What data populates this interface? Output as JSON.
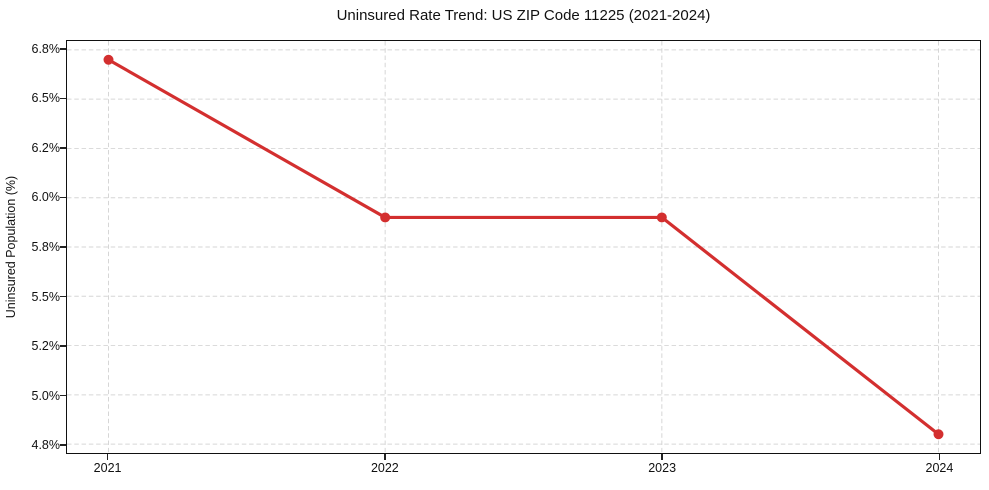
{
  "chart_data": {
    "type": "line",
    "title": "Uninsured Rate Trend: US ZIP Code 11225 (2021-2024)",
    "xlabel": "",
    "ylabel": "Uninsured Population (%)",
    "categories": [
      "2021",
      "2022",
      "2023",
      "2024"
    ],
    "values": [
      6.7,
      5.9,
      5.9,
      4.8
    ],
    "value_unit": "%",
    "line_color": "#d32f2f",
    "marker": "circle",
    "ylim": [
      4.705,
      6.795
    ],
    "x_margin": 0.15,
    "yticks": [
      {
        "value": 6.75,
        "label": "6.8%"
      },
      {
        "value": 6.5,
        "label": "6.5%"
      },
      {
        "value": 6.25,
        "label": "6.2%"
      },
      {
        "value": 6.0,
        "label": "6.0%"
      },
      {
        "value": 5.75,
        "label": "5.8%"
      },
      {
        "value": 5.5,
        "label": "5.5%"
      },
      {
        "value": 5.25,
        "label": "5.2%"
      },
      {
        "value": 5.0,
        "label": "5.0%"
      },
      {
        "value": 4.75,
        "label": "4.8%"
      }
    ],
    "grid": {
      "show": true,
      "style": "dashed",
      "color": "#d6d6d6"
    },
    "legend": {
      "show": false
    }
  }
}
